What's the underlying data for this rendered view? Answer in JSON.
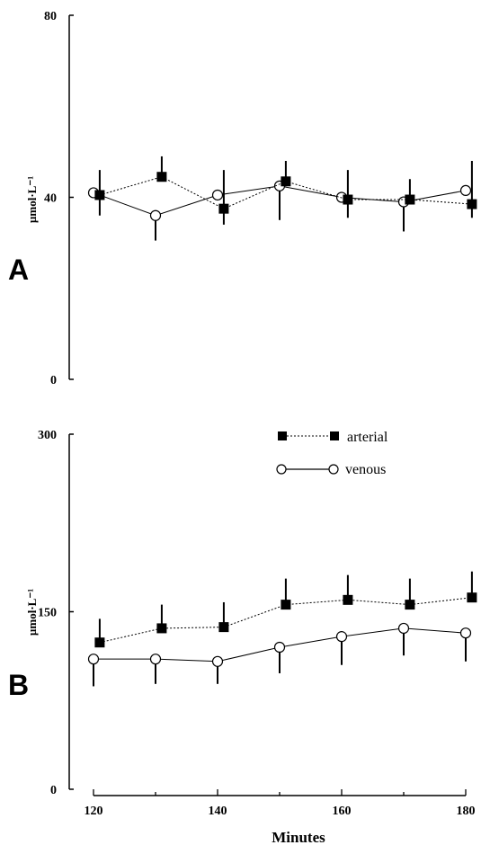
{
  "colors": {
    "ink": "#000000",
    "paper": "#ffffff"
  },
  "chart_data": [
    {
      "type": "line",
      "panel_label": "A",
      "title": "",
      "xlabel": "",
      "ylabel": "µmol·L⁻¹",
      "ylim": [
        0,
        80
      ],
      "y_ticks": [
        "0",
        "40",
        "80"
      ],
      "xlim": [
        120,
        180
      ],
      "series": [
        {
          "key": "arterial",
          "marker": "filled-square",
          "line": "dotted",
          "x": [
            121,
            131,
            141,
            151,
            161,
            171,
            181
          ],
          "values": [
            40.5,
            44.5,
            37.5,
            43.5,
            39.5,
            39.5,
            38.5
          ],
          "err_plus": [
            5.5,
            4.5,
            8.5,
            4.5,
            6.5,
            4.5,
            9.5
          ],
          "err_minus": [
            4.5,
            0,
            3.5,
            0,
            4,
            0,
            3
          ]
        },
        {
          "key": "venous",
          "marker": "open-circle",
          "line": "solid",
          "x": [
            120,
            130,
            140,
            150,
            160,
            170,
            180
          ],
          "values": [
            41,
            36,
            40.5,
            42.5,
            40,
            39,
            41.5
          ],
          "err_plus": [
            0,
            0,
            0,
            0,
            0,
            0,
            0
          ],
          "err_minus": [
            0,
            5.5,
            0,
            7.5,
            0,
            6.5,
            0
          ]
        }
      ]
    },
    {
      "type": "line",
      "panel_label": "B",
      "title": "",
      "xlabel": "Minutes",
      "ylabel": "µmol·L⁻¹",
      "ylim": [
        0,
        300
      ],
      "y_ticks": [
        "0",
        "150",
        "300"
      ],
      "xlim": [
        120,
        180
      ],
      "x_ticks": [
        "120",
        "140",
        "160",
        "180"
      ],
      "legend": {
        "position": "top-right",
        "entries": [
          {
            "series": "arterial",
            "label": "arterial"
          },
          {
            "series": "venous",
            "label": "venous"
          }
        ]
      },
      "series": [
        {
          "key": "arterial",
          "name": "arterial",
          "marker": "filled-square",
          "line": "dotted",
          "x": [
            121,
            131,
            141,
            151,
            161,
            171,
            181
          ],
          "values": [
            124,
            136,
            137,
            156,
            160,
            156,
            162
          ],
          "err_plus": [
            20,
            20,
            21,
            22,
            21,
            22,
            22
          ],
          "err_minus": [
            0,
            0,
            0,
            0,
            0,
            0,
            0
          ]
        },
        {
          "key": "venous",
          "name": "venous",
          "marker": "open-circle",
          "line": "solid",
          "x": [
            120,
            130,
            140,
            150,
            160,
            170,
            180
          ],
          "values": [
            110,
            110,
            108,
            120,
            129,
            136,
            132
          ],
          "err_plus": [
            0,
            0,
            0,
            0,
            0,
            0,
            0
          ],
          "err_minus": [
            23,
            21,
            19,
            22,
            24,
            23,
            24
          ]
        }
      ]
    }
  ]
}
